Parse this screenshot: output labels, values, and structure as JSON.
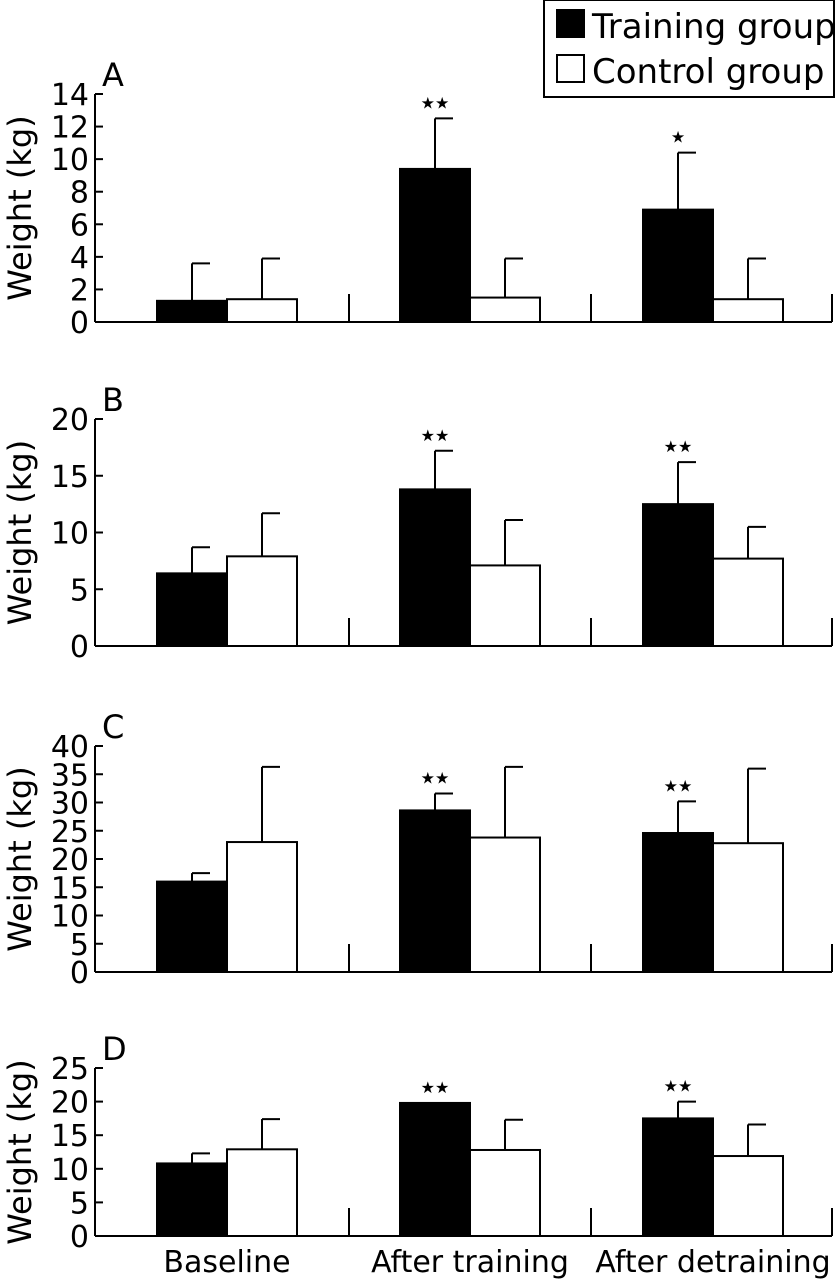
{
  "legend": {
    "items": [
      {
        "label": "Training group",
        "fill": "#000000"
      },
      {
        "label": "Control group",
        "fill": "#ffffff"
      }
    ]
  },
  "colors": {
    "training": "#000000",
    "control": "#ffffff",
    "stroke": "#000000"
  },
  "chart_data": [
    {
      "type": "bar",
      "panel_label": "A",
      "ylabel": "Weight (kg)",
      "ylim": [
        0,
        14
      ],
      "yticks": [
        0,
        2,
        4,
        6,
        8,
        10,
        12,
        14
      ],
      "categories": [
        "Baseline",
        "After training",
        "After detraining"
      ],
      "series": [
        {
          "name": "Training group",
          "values": [
            1.3,
            9.4,
            6.9
          ],
          "errors": [
            2.3,
            3.1,
            3.5
          ],
          "significance": [
            "",
            "★★",
            "★"
          ]
        },
        {
          "name": "Control group",
          "values": [
            1.4,
            1.5,
            1.4
          ],
          "errors": [
            2.5,
            2.4,
            2.5
          ],
          "significance": [
            "",
            "",
            ""
          ]
        }
      ]
    },
    {
      "type": "bar",
      "panel_label": "B",
      "ylabel": "Weight (kg)",
      "ylim": [
        0,
        20
      ],
      "yticks": [
        0,
        5,
        10,
        15,
        20
      ],
      "categories": [
        "Baseline",
        "After training",
        "After detraining"
      ],
      "series": [
        {
          "name": "Training group",
          "values": [
            6.4,
            13.8,
            12.5
          ],
          "errors": [
            2.3,
            3.4,
            3.7
          ],
          "significance": [
            "",
            "★★",
            "★★"
          ]
        },
        {
          "name": "Control group",
          "values": [
            7.9,
            7.1,
            7.7
          ],
          "errors": [
            3.8,
            4.0,
            2.8
          ],
          "significance": [
            "",
            "",
            ""
          ]
        }
      ]
    },
    {
      "type": "bar",
      "panel_label": "C",
      "ylabel": "Weight (kg)",
      "ylim": [
        0,
        40
      ],
      "yticks": [
        0,
        5,
        10,
        15,
        20,
        25,
        30,
        35,
        40
      ],
      "categories": [
        "Baseline",
        "After training",
        "After detraining"
      ],
      "series": [
        {
          "name": "Training group",
          "values": [
            16,
            28.6,
            24.6
          ],
          "errors": [
            1.5,
            3.0,
            5.6
          ],
          "significance": [
            "",
            "★★",
            "★★"
          ]
        },
        {
          "name": "Control group",
          "values": [
            23,
            23.8,
            22.8
          ],
          "errors": [
            13.3,
            12.5,
            13.2
          ],
          "significance": [
            "",
            "",
            ""
          ]
        }
      ]
    },
    {
      "type": "bar",
      "panel_label": "D",
      "ylabel": "Weight (kg)",
      "ylim": [
        0,
        25
      ],
      "yticks": [
        0,
        5,
        10,
        15,
        20,
        25
      ],
      "categories": [
        "Baseline",
        "After training",
        "After detraining"
      ],
      "series": [
        {
          "name": "Training group",
          "values": [
            10.8,
            19.8,
            17.5
          ],
          "errors": [
            1.5,
            0,
            2.5
          ],
          "significance": [
            "",
            "★★",
            "★★"
          ]
        },
        {
          "name": "Control group",
          "values": [
            12.9,
            12.8,
            11.9
          ],
          "errors": [
            4.5,
            4.5,
            4.7
          ],
          "significance": [
            "",
            "",
            ""
          ]
        }
      ]
    }
  ]
}
